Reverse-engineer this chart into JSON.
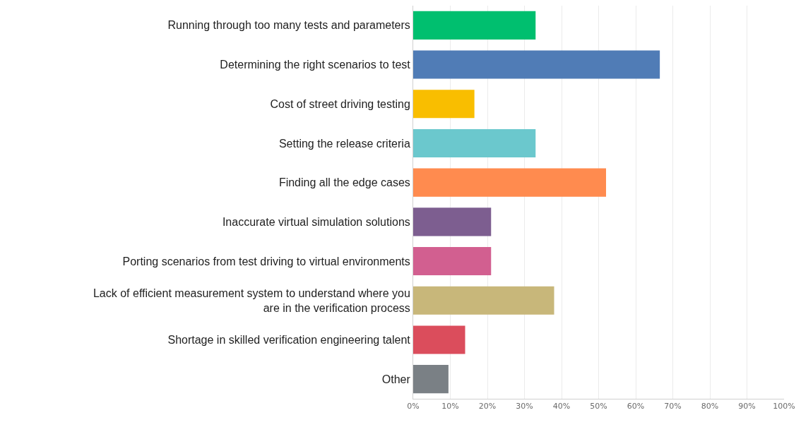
{
  "chart_data": {
    "type": "bar",
    "orientation": "horizontal",
    "categories": [
      "Running through too many tests and parameters",
      "Determining the right scenarios to test",
      "Cost of street driving testing",
      "Setting the release criteria",
      "Finding all the edge cases",
      "Inaccurate virtual simulation solutions",
      "Porting scenarios from test driving to virtual environments",
      "Lack of efficient measurement system to understand where you\nare in the verification process",
      "Shortage in skilled verification engineering talent",
      "Other"
    ],
    "values": [
      33,
      66.5,
      16.5,
      33,
      52,
      21,
      21,
      38,
      14,
      9.5
    ],
    "colors": [
      "#00bf6f",
      "#507cb6",
      "#f9be00",
      "#6bc8cd",
      "#ff8b4f",
      "#7d5e90",
      "#d25f90",
      "#c8b77a",
      "#db4d5c",
      "#7a8085"
    ],
    "xlim": [
      0,
      100
    ],
    "xticks": [
      {
        "value": 0,
        "label": "0%"
      },
      {
        "value": 10,
        "label": "10%"
      },
      {
        "value": 20,
        "label": "20%"
      },
      {
        "value": 30,
        "label": "30%"
      },
      {
        "value": 40,
        "label": "40%"
      },
      {
        "value": 50,
        "label": "50%"
      },
      {
        "value": 60,
        "label": "60%"
      },
      {
        "value": 70,
        "label": "70%"
      },
      {
        "value": 80,
        "label": "80%"
      },
      {
        "value": 90,
        "label": "90%"
      },
      {
        "value": 100,
        "label": "100%"
      }
    ],
    "grid": "x"
  }
}
